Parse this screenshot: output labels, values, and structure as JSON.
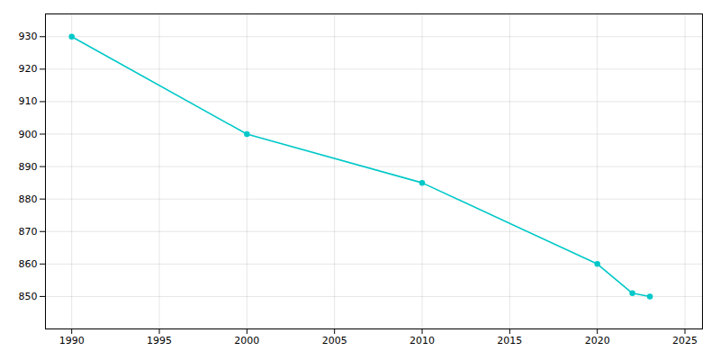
{
  "chart_data": {
    "type": "line",
    "x": [
      1990,
      2000,
      2010,
      2020,
      2022,
      2023
    ],
    "values": [
      930,
      900,
      885,
      860,
      851,
      850
    ],
    "color": "#00C8C8",
    "marker": "circle",
    "xlim": [
      1988.5,
      2026
    ],
    "ylim": [
      840,
      937
    ],
    "xticks": [
      1990,
      1995,
      2000,
      2005,
      2010,
      2015,
      2020,
      2025
    ],
    "yticks": [
      850,
      860,
      870,
      880,
      890,
      900,
      910,
      920,
      930
    ],
    "grid": true
  }
}
